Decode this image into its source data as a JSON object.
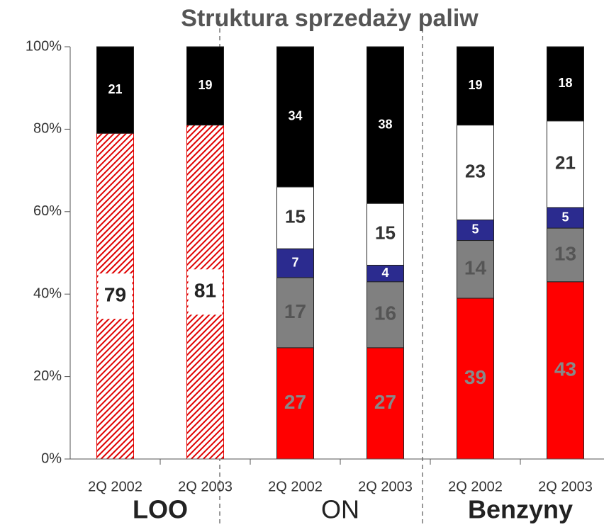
{
  "chart_data": {
    "type": "stacked_bar",
    "title": "Struktura sprzedaży paliw",
    "categories": [
      "2Q 2002",
      "2Q 2003",
      "2Q 2002",
      "2Q 2003",
      "2Q 2002",
      "2Q 2003"
    ],
    "groups": [
      "LOO",
      "ON",
      "Benzyny"
    ],
    "series": [
      {
        "color": "#e00000",
        "pattern": "hatch",
        "label_color": "#222",
        "values": [
          79,
          81,
          null,
          null,
          null,
          null
        ]
      },
      {
        "color": "#ff0000",
        "label_color": "#888",
        "values": [
          null,
          null,
          27,
          27,
          39,
          43
        ]
      },
      {
        "color": "#808080",
        "label_color": "#555",
        "values": [
          null,
          null,
          17,
          16,
          14,
          13
        ]
      },
      {
        "color": "#2b2b8f",
        "label_color": "#ffffff",
        "values": [
          null,
          null,
          7,
          4,
          5,
          5
        ]
      },
      {
        "color": "#ffffff",
        "label_color": "#333",
        "values": [
          null,
          null,
          15,
          15,
          23,
          21
        ]
      },
      {
        "color": "#000000",
        "label_color": "#ffffff",
        "values": [
          21,
          19,
          34,
          38,
          19,
          18
        ]
      }
    ],
    "ylim": [
      0,
      100
    ],
    "yticks": [
      {
        "value": 0,
        "label": "0%"
      },
      {
        "value": 20,
        "label": "20%"
      },
      {
        "value": 40,
        "label": "40%"
      },
      {
        "value": 60,
        "label": "60%"
      },
      {
        "value": 80,
        "label": "80%"
      },
      {
        "value": 100,
        "label": "100%"
      }
    ]
  }
}
